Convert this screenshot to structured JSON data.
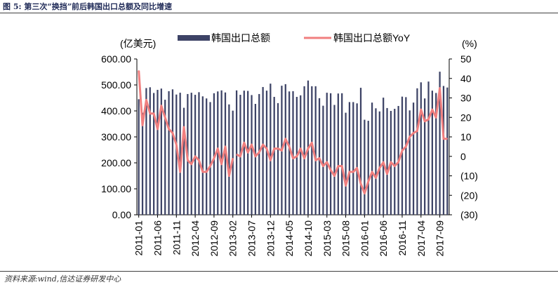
{
  "figure_title": "图 5: 第三次“换挡”前后韩国出口总额及同比增速",
  "source": "资料来源:wind,信达证券研发中心",
  "chart_data": {
    "type": "bar",
    "subtype": "bar + line (dual axis)",
    "title": "",
    "left_axis_unit": "(亿美元)",
    "right_axis_unit": "(%)",
    "xlabel": "",
    "ylabel": "",
    "ylim": [
      0,
      600
    ],
    "ylim_right": [
      -30,
      50
    ],
    "left_ticks": [
      "600.00",
      "500.00",
      "400.00",
      "300.00",
      "200.00",
      "100.00",
      "0.00"
    ],
    "right_ticks": [
      "50",
      "40",
      "30",
      "20",
      "10",
      "0",
      "(10)",
      "(20)",
      "(30)"
    ],
    "right_tick_values": [
      50,
      40,
      30,
      20,
      10,
      0,
      -10,
      -20,
      -30
    ],
    "right_tick_colors": [
      "#000000",
      "#000000",
      "#000000",
      "#000000",
      "#000000",
      "#000000",
      "#c00000",
      "#c00000",
      "#c00000"
    ],
    "x_tick_labels": [
      "2011-01",
      "2011-06",
      "2011-11",
      "2012-04",
      "2012-09",
      "2013-02",
      "2013-07",
      "2013-12",
      "2014-05",
      "2014-10",
      "2015-03",
      "2015-08",
      "2016-01",
      "2016-06",
      "2016-11",
      "2017-04",
      "2017-09"
    ],
    "x_tick_index": [
      0,
      5,
      10,
      15,
      20,
      25,
      30,
      35,
      40,
      45,
      50,
      55,
      60,
      65,
      70,
      75,
      80
    ],
    "legend_position": "top",
    "grid": false,
    "series": [
      {
        "name": "韩国出口总额",
        "kind": "bar",
        "axis": "left",
        "color": "#3d4366",
        "values": [
          445,
          393,
          488,
          491,
          469,
          481,
          486,
          443,
          476,
          483,
          463,
          470,
          412,
          465,
          470,
          462,
          472,
          456,
          448,
          434,
          468,
          475,
          479,
          471,
          425,
          401,
          479,
          462,
          478,
          477,
          461,
          427,
          465,
          492,
          478,
          505,
          454,
          430,
          497,
          503,
          475,
          476,
          454,
          460,
          495,
          517,
          495,
          495,
          449,
          420,
          470,
          468,
          423,
          467,
          468,
          393,
          434,
          434,
          429,
          489,
          366,
          362,
          432,
          410,
          398,
          451,
          411,
          400,
          408,
          419,
          455,
          453,
          402,
          432,
          487,
          510,
          448,
          513,
          478,
          469,
          551,
          496,
          490
        ]
      },
      {
        "name": "韩国出口总额YoY",
        "kind": "line",
        "axis": "right",
        "color": "#f07f7f",
        "values": [
          44,
          16,
          29,
          22,
          22,
          14,
          26,
          20,
          14,
          12,
          6,
          -8,
          15,
          -2,
          -4,
          0,
          -2,
          -8,
          -8,
          -5,
          -1,
          4,
          -4,
          5,
          -10,
          -1,
          1,
          0,
          7,
          2,
          6,
          0,
          2,
          6,
          4,
          -2,
          4,
          4,
          3,
          9,
          5,
          -1,
          0,
          4,
          -1,
          4,
          7,
          -2,
          -1,
          -5,
          -3,
          -7,
          -10,
          -5,
          -5,
          -15,
          -8,
          -8,
          -6,
          -14,
          -19,
          -13,
          -8,
          -11,
          -6,
          -3,
          -9,
          -3,
          -5,
          -3,
          3,
          5,
          10,
          12,
          13,
          24,
          18,
          19,
          24,
          20,
          35,
          9,
          9
        ]
      }
    ]
  }
}
